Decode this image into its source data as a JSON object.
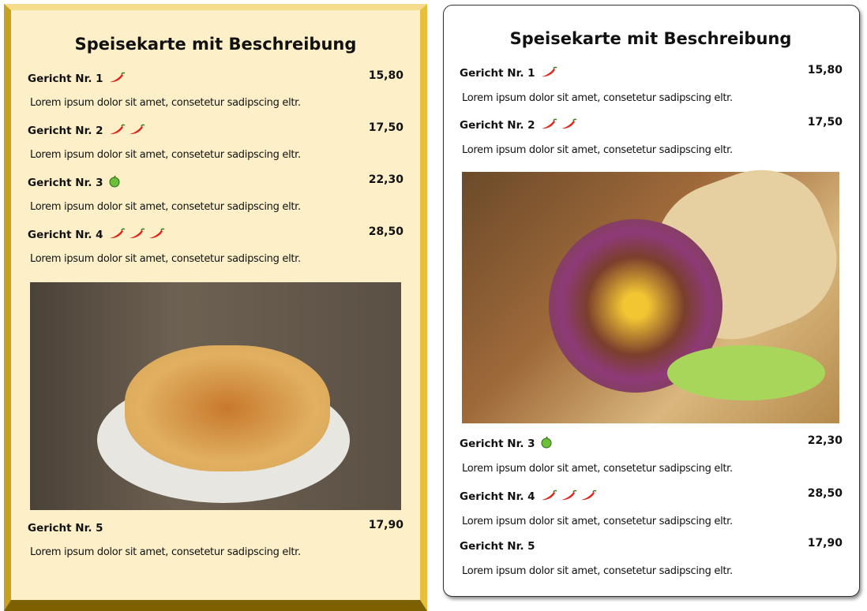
{
  "menus": [
    {
      "title": "Speisekarte mit Beschreibung",
      "image": "taco-salad-photo",
      "items": [
        {
          "name": "Gericht Nr. 1",
          "price": "15,80",
          "desc": "Lorem ipsum dolor sit amet, consetetur sadipscing eltr.",
          "chili": 1,
          "veg": false
        },
        {
          "name": "Gericht Nr. 2",
          "price": "17,50",
          "desc": "Lorem ipsum dolor sit amet, consetetur sadipscing eltr.",
          "chili": 2,
          "veg": false
        },
        {
          "name": "Gericht Nr. 3",
          "price": "22,30",
          "desc": "Lorem ipsum dolor sit amet, consetetur sadipscing eltr.",
          "chili": 0,
          "veg": true
        },
        {
          "name": "Gericht Nr. 4",
          "price": "28,50",
          "desc": "Lorem ipsum dolor sit amet, consetetur sadipscing eltr.",
          "chili": 3,
          "veg": false
        },
        {
          "name": "Gericht Nr. 5",
          "price": "17,90",
          "desc": "Lorem ipsum dolor sit amet, consetetur sadipscing eltr.",
          "chili": 0,
          "veg": false
        }
      ]
    },
    {
      "title": "Speisekarte mit Beschreibung",
      "image": "burrito-photo",
      "items": [
        {
          "name": "Gericht Nr. 1",
          "price": "15,80",
          "desc": "Lorem ipsum dolor sit amet, consetetur sadipscing eltr.",
          "chili": 1,
          "veg": false
        },
        {
          "name": "Gericht Nr. 2",
          "price": "17,50",
          "desc": "Lorem ipsum dolor sit amet, consetetur sadipscing eltr.",
          "chili": 2,
          "veg": false
        },
        {
          "name": "Gericht Nr. 3",
          "price": "22,30",
          "desc": "Lorem ipsum dolor sit amet, consetetur sadipscing eltr.",
          "chili": 0,
          "veg": true
        },
        {
          "name": "Gericht Nr. 4",
          "price": "28,50",
          "desc": "Lorem ipsum dolor sit amet, consetetur sadipscing eltr.",
          "chili": 3,
          "veg": false
        },
        {
          "name": "Gericht Nr. 5",
          "price": "17,90",
          "desc": "Lorem ipsum dolor sit amet, consetetur sadipscing eltr.",
          "chili": 0,
          "veg": false
        }
      ]
    }
  ],
  "colors": {
    "left_bg": "#fdf0c9",
    "frame_gold": "#e6bf3c",
    "chili": "#e0261b",
    "veg": "#5aa832"
  }
}
